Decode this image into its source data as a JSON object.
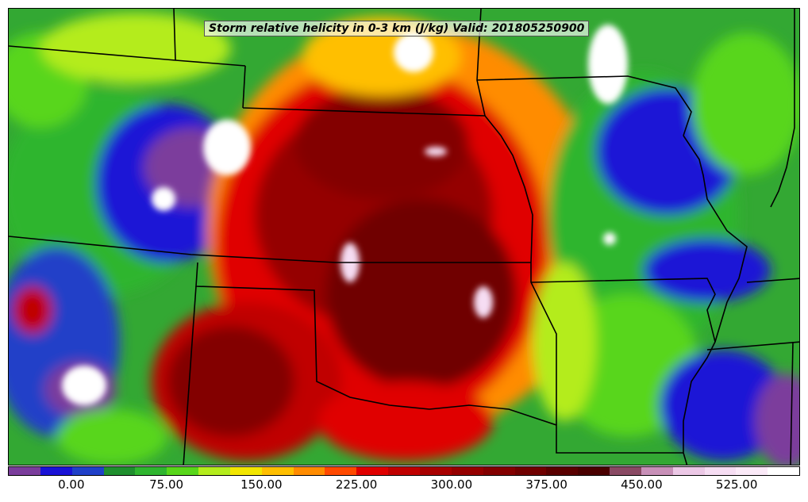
{
  "title": "Storm relative helicity in 0-3 km (J/kg) Valid: 201805250900",
  "colorbar": {
    "min": -50,
    "max": 575,
    "step": 25,
    "colors": [
      "#7b3d9c",
      "#1a12d6",
      "#2040c8",
      "#1f8f2e",
      "#2fb52f",
      "#58d61a",
      "#b4ec1c",
      "#f2e600",
      "#ffbf00",
      "#ff8c00",
      "#ff4a00",
      "#e00000",
      "#c00000",
      "#a80000",
      "#950000",
      "#830000",
      "#700000",
      "#5a0000",
      "#4a0000",
      "#8a4a64",
      "#c890b8",
      "#ecc8e6",
      "#f6ddf3",
      "#fbeaf8",
      "#ffffff"
    ],
    "tick_values": [
      0,
      75,
      150,
      225,
      300,
      375,
      450,
      525
    ],
    "tick_labels": [
      "0.00",
      "75.00",
      "150.00",
      "225.00",
      "300.00",
      "375.00",
      "450.00",
      "525.00"
    ]
  }
}
